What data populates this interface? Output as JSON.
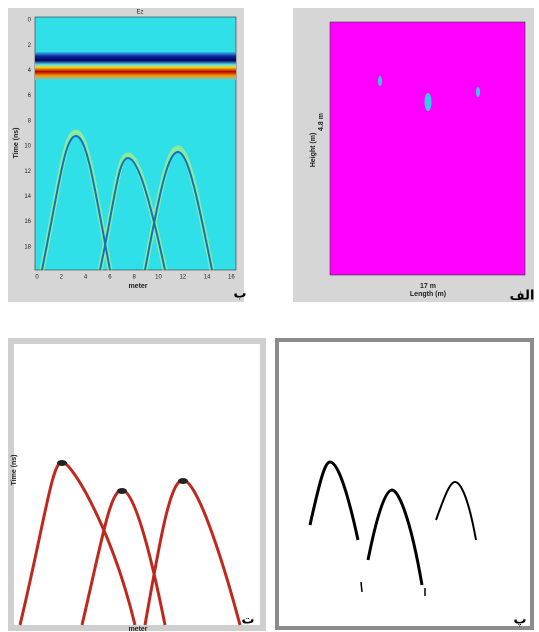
{
  "panels": [
    {
      "label": "ب",
      "title": "Ez",
      "y_label": "Time (ns)",
      "x_label": "meter",
      "y_ticks": [
        0,
        2,
        4,
        6,
        8,
        10,
        12,
        14,
        16,
        18
      ],
      "x_ticks": [
        0,
        2,
        4,
        6,
        8,
        10,
        12,
        14,
        16
      ]
    },
    {
      "label": "الف",
      "y_label": "Height (m)",
      "height": "4.8 m",
      "width": "17 m",
      "x_label": "Length (m)"
    },
    {
      "label": "ت",
      "y_label": "Time (ns)",
      "x_label": "meter"
    },
    {
      "label": "پ"
    }
  ]
}
